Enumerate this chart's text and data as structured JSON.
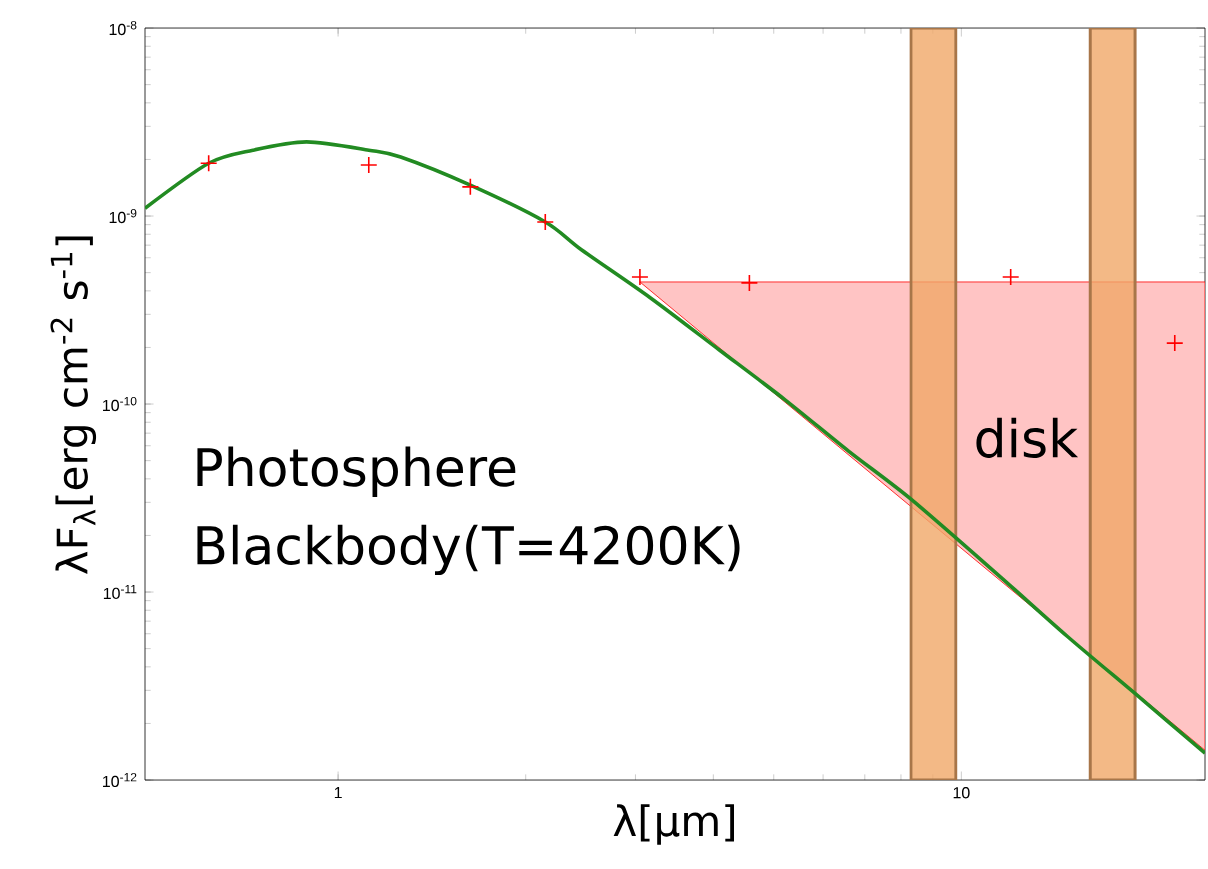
{
  "chart_data": {
    "type": "line",
    "xlabel": "λ[μm]",
    "ylabel": "λF$_{λ}$[erg cm$^{-2}$ s$^{-1}$]",
    "log": "xy",
    "grid": false,
    "xlim": [
      0.49,
      24.6
    ],
    "ylim": [
      1e-12,
      1e-08
    ],
    "xticks": [
      1,
      10
    ],
    "yticks": [
      {
        "value": 1e-12,
        "label": "10$^{-12}$"
      },
      {
        "value": 1e-11,
        "label": "10$^{-11}$"
      },
      {
        "value": 1e-10,
        "label": "10$^{-10}$"
      },
      {
        "value": 1e-09,
        "label": "10$^{-9}$"
      },
      {
        "value": 1e-08,
        "label": "10$^{-8}$"
      }
    ],
    "series": [
      {
        "type": "area",
        "color": "#ffc4c4",
        "x": [
          3.05,
          24.6,
          24.6
        ],
        "values": [
          4.46e-10,
          4.46e-10,
          1.44e-12
        ]
      },
      {
        "color": "#228b22",
        "marker": "none",
        "line_style": "solid",
        "x": [
          0.49,
          0.62,
          0.73,
          0.89,
          1.12,
          1.26,
          1.63,
          2.15,
          2.46,
          3.16,
          4.09,
          5.22,
          6.6,
          8.32,
          11.5,
          14.8,
          19.2,
          24.6
        ],
        "values": [
          1.1e-09,
          1.91e-09,
          2.24e-09,
          2.48e-09,
          2.24e-09,
          2.06e-09,
          1.46e-09,
          9.3e-10,
          6.6e-10,
          3.7e-10,
          1.94e-10,
          1.05e-10,
          5.6e-11,
          3.1e-11,
          1.22e-11,
          5.8e-12,
          2.8e-12,
          1.39e-12
        ]
      },
      {
        "type": "scatter",
        "color": "#ff0000",
        "marker": "cross",
        "x": [
          0.62,
          1.12,
          1.63,
          2.15,
          3.05,
          4.57,
          12.0,
          22.0
        ],
        "values": [
          1.91e-09,
          1.87e-09,
          1.43e-09,
          9.3e-10,
          4.74e-10,
          4.41e-10,
          4.74e-10,
          2.11e-10
        ]
      }
    ],
    "bands": [
      {
        "axis": "x",
        "from": 8.3,
        "to": 9.8,
        "color": "#f0a868"
      },
      {
        "axis": "x",
        "from": 16.1,
        "to": 19.0,
        "color": "#f0a868"
      }
    ],
    "annotations": [
      "disk",
      "Photosphere",
      "Blackbody(T=4200K)"
    ]
  }
}
